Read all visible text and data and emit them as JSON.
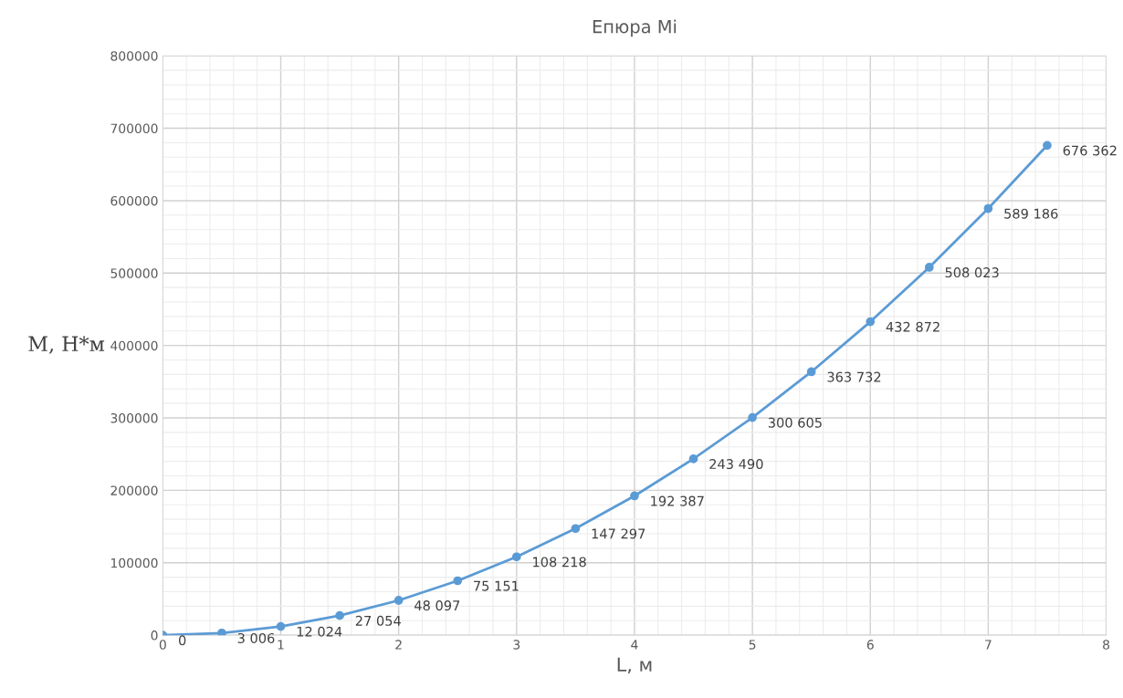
{
  "chart_data": {
    "type": "line",
    "title": "Епюра Mi",
    "xlabel": "L, м",
    "ylabel": "M, Н*м",
    "x": [
      0,
      0.5,
      1,
      1.5,
      2,
      2.5,
      3,
      3.5,
      4,
      4.5,
      5,
      5.5,
      6,
      6.5,
      7,
      7.5
    ],
    "series": [
      {
        "color": "#5b9bd5",
        "values": [
          0,
          3006,
          12024,
          27054,
          48097,
          75151,
          108218,
          147297,
          192387,
          243490,
          300605,
          363732,
          432872,
          508023,
          589186,
          676362
        ],
        "value_labels": [
          "0",
          "3 006",
          "12 024",
          "27 054",
          "48 097",
          "75 151",
          "108 218",
          "147 297",
          "192 387",
          "243 490",
          "300 605",
          "363 732",
          "432 872",
          "508 023",
          "589 186",
          "676 362"
        ]
      }
    ],
    "xlim": [
      0,
      8
    ],
    "xticks": [
      0,
      1,
      2,
      3,
      4,
      5,
      6,
      7,
      8
    ],
    "ylim": [
      0,
      800000
    ],
    "yticks": [
      0,
      100000,
      200000,
      300000,
      400000,
      500000,
      600000,
      700000,
      800000
    ],
    "grid": true,
    "marker": "circle",
    "line_style": "solid",
    "legend": false
  }
}
